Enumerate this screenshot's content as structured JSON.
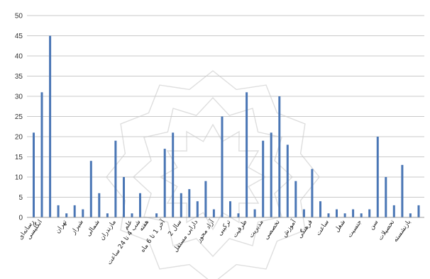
{
  "chart_data": {
    "type": "bar",
    "title": "",
    "xlabel": "",
    "ylabel": "",
    "ylim": [
      0,
      50
    ],
    "yticks": [
      0,
      5,
      10,
      15,
      20,
      25,
      30,
      35,
      40,
      45,
      50
    ],
    "grid": true,
    "legend": "none",
    "bar_color": "#4a76b5",
    "grid_color": "#c9c9c9",
    "values": [
      21,
      31,
      45,
      3,
      1,
      3,
      2,
      14,
      6,
      1,
      19,
      10,
      1,
      6,
      0,
      1,
      17,
      21,
      6,
      7,
      4,
      9,
      2,
      25,
      4,
      1,
      31,
      2,
      19,
      21,
      30,
      18,
      9,
      2,
      12,
      4,
      1,
      2,
      1,
      2,
      1,
      2,
      20,
      10,
      3,
      13,
      1,
      3
    ],
    "categories": [
      "رسانه‌ای",
      "انگلیسی",
      "",
      "",
      "تهران",
      "",
      "شیراز",
      "",
      "شمالی",
      "",
      "مازندران",
      "",
      "علم",
      "شب 4 تا 24 ساعت",
      "هفته",
      "",
      "آخر 1 تا 6 ماه",
      "",
      "سال 2",
      "",
      "دارایی مستقل",
      "",
      "آزاد محور",
      "",
      "ترکیبی",
      "",
      "ظرفیت",
      "",
      "مدیریت",
      "",
      "تخصصی",
      "",
      "آموزش",
      "",
      "فرهنگی",
      "",
      "ساعت",
      "",
      "شغل",
      "",
      "جنسیت",
      "",
      "سن",
      "",
      "تحصیلات",
      "",
      "بازنشسته",
      ""
    ]
  }
}
